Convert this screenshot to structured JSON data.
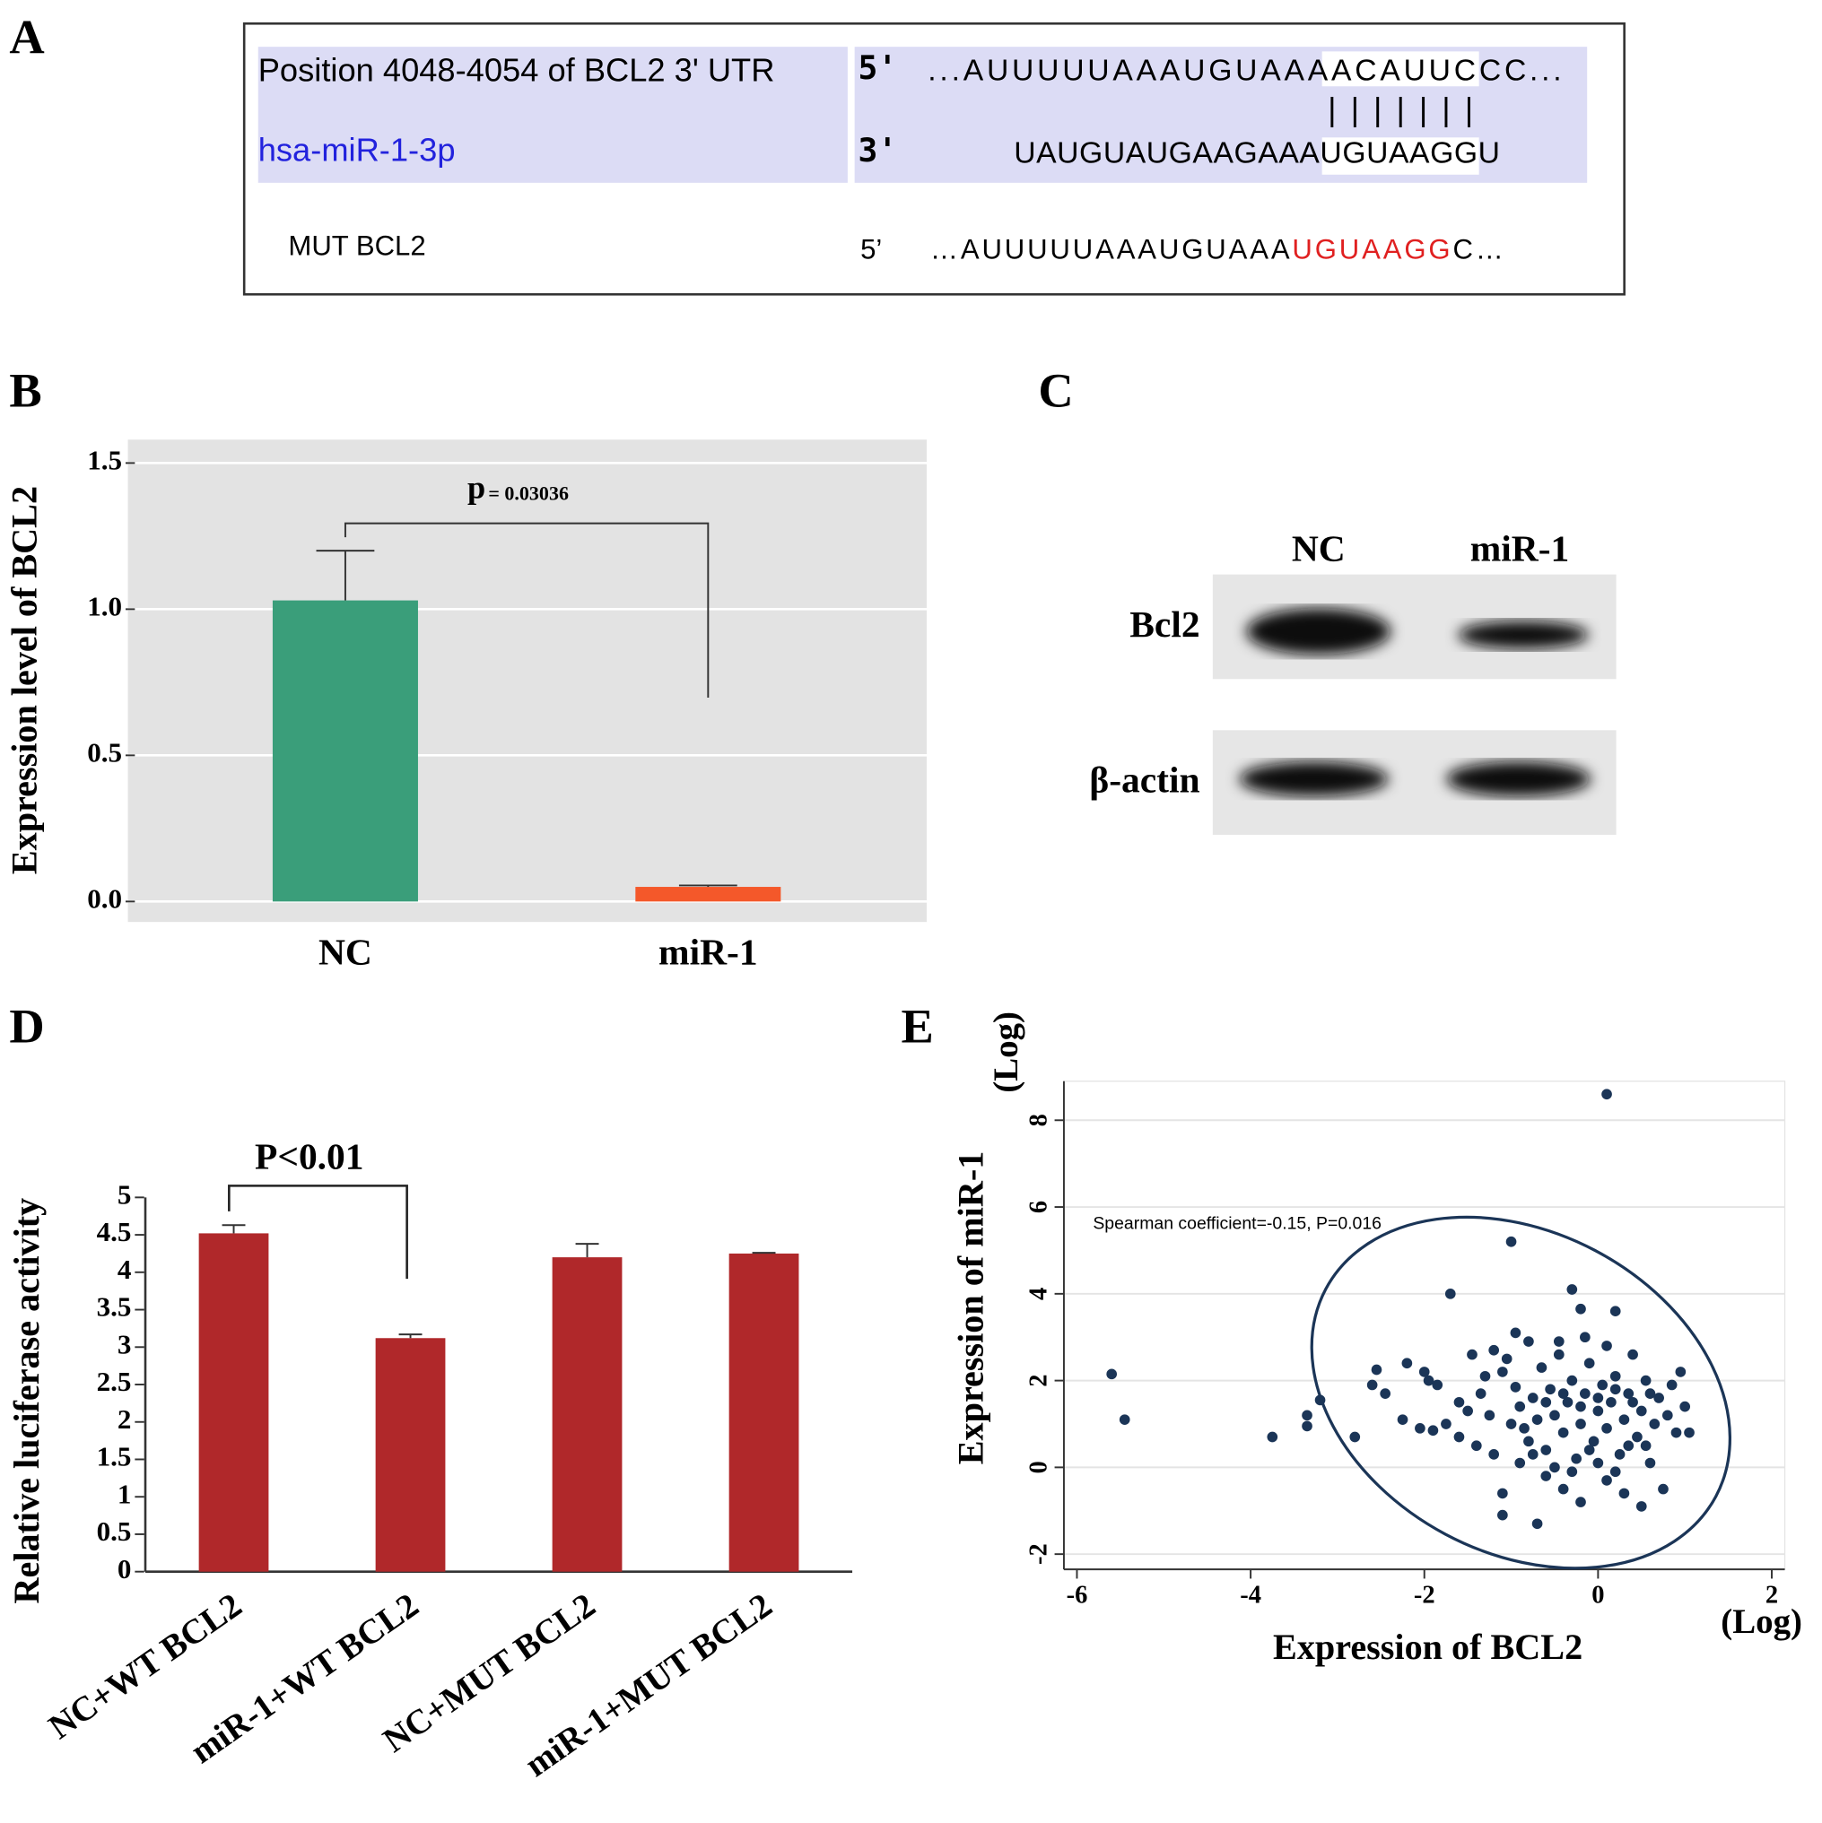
{
  "panel_labels": [
    "A",
    "B",
    "C",
    "D",
    "E"
  ],
  "sequence": {
    "target": {
      "name": "Position 4048-4054 of BCL2 3' UTR",
      "end": "5'",
      "flank": "...AUUUUUAAAUGUAAA",
      "site": "ACAUUCC",
      "tail": "C..."
    },
    "pairing": "|||||||",
    "mirna": {
      "name": "hsa-miR-1-3p",
      "end": "3'",
      "flank": "UAUGUAUGAAGAAA",
      "site": "UGUAAGG",
      "tail": "U"
    },
    "mutant": {
      "name": "MUT BCL2",
      "end": "5’",
      "flank": "…AUUUUUAAAUGUAAA",
      "site": "UGUAAGG",
      "tail": "C…"
    }
  },
  "blot": {
    "columns": [
      "NC",
      "miR-1"
    ],
    "rows": [
      "Bcl2",
      "β-actin"
    ]
  },
  "chart_data": [
    {
      "type": "bar",
      "ylabel": "Expression level of BCL2",
      "categories": [
        "NC",
        "miR-1"
      ],
      "values": [
        1.03,
        0.05
      ],
      "errors": [
        0.17,
        0.005
      ],
      "colors": [
        "#3a9e7a",
        "#f4582a"
      ],
      "ylim": [
        -0.07,
        1.58
      ],
      "yticks": [
        {
          "value": 0,
          "label": "0.0"
        },
        {
          "value": 0.5,
          "label": "0.5"
        },
        {
          "value": 1,
          "label": "1.0"
        },
        {
          "value": 1.5,
          "label": "1.5"
        }
      ],
      "grid": true,
      "background": "#e3e3e3",
      "annotation": {
        "text": "p",
        "small": "= 0.03036"
      }
    },
    {
      "type": "bar",
      "ylabel": "Relative luciferase activity",
      "categories": [
        "NC+WT BCL2",
        "miR-1+WT BCL2",
        "NC+MUT BCL2",
        "miR-1+MUT BCL2"
      ],
      "values": [
        4.52,
        3.12,
        4.2,
        4.25
      ],
      "errors": [
        0.11,
        0.05,
        0.18,
        0.01
      ],
      "color": "#b0282a",
      "ylim": [
        0,
        5
      ],
      "yticks": [
        0,
        0.5,
        1,
        1.5,
        2,
        2.5,
        3,
        3.5,
        4,
        4.5,
        5
      ],
      "grid": false,
      "annotation": {
        "text": "P<0.01"
      }
    },
    {
      "type": "scatter",
      "xlabel": "Expression of BCL2",
      "xunit": "(Log)",
      "ylabel": "Expression of miR-1",
      "yunit": "(Log)",
      "annotation": "Spearman coefficient=-0.15, P=0.016",
      "color": "#1b3557",
      "xlim": [
        -6.15,
        2.15
      ],
      "ylim": [
        -2.35,
        8.9
      ],
      "xticks": [
        -6,
        -4,
        -2,
        0,
        2
      ],
      "yticks": [
        -2,
        0,
        2,
        4,
        6,
        8
      ],
      "grid": true,
      "x": [
        0.1,
        -1.0,
        -5.6,
        -5.45,
        -3.75,
        -2.8,
        -3.2,
        -3.35,
        -3.35,
        -1.7,
        -0.3,
        -0.2,
        0.2,
        -2.55,
        -2.6,
        -2.45,
        -2.2,
        -2.0,
        -1.95,
        -1.85,
        -2.25,
        -2.05,
        -1.9,
        -1.75,
        -1.6,
        -1.5,
        -1.35,
        -1.45,
        -1.25,
        -1.1,
        -1.2,
        -1.05,
        -0.95,
        -0.9,
        -0.85,
        -0.8,
        -0.75,
        -0.7,
        -0.65,
        -0.6,
        -0.55,
        -0.5,
        -0.45,
        -0.4,
        -0.35,
        -0.3,
        -0.25,
        -0.2,
        -0.15,
        -0.1,
        -0.05,
        0.0,
        0.05,
        0.1,
        0.15,
        0.2,
        0.25,
        0.3,
        0.35,
        0.4,
        0.45,
        0.5,
        0.55,
        0.6,
        0.65,
        0.7,
        0.75,
        0.8,
        0.85,
        0.9,
        1.0,
        1.05,
        0.95,
        -0.6,
        -0.4,
        -0.2,
        0.1,
        0.3,
        0.5,
        -1.1,
        -1.1,
        -0.7,
        -0.5,
        -0.3,
        0.0,
        0.2,
        -0.9,
        -1.2,
        -1.4,
        -0.8,
        -0.6,
        -0.4,
        -0.2,
        0.0,
        0.2,
        0.4,
        0.6,
        -1.0,
        -1.3,
        -1.6,
        -0.1,
        0.35,
        0.55,
        -0.75,
        -0.45,
        0.1,
        -0.15,
        -0.95
      ],
      "y": [
        8.6,
        5.2,
        2.15,
        1.1,
        0.7,
        0.7,
        1.55,
        1.2,
        0.95,
        4.0,
        4.1,
        3.65,
        3.6,
        2.25,
        1.9,
        1.7,
        2.4,
        2.2,
        2.0,
        1.9,
        1.1,
        0.9,
        0.85,
        1.0,
        0.7,
        1.3,
        1.7,
        2.6,
        1.2,
        2.2,
        2.7,
        2.5,
        1.85,
        1.4,
        0.9,
        2.9,
        1.6,
        1.1,
        2.3,
        0.4,
        1.8,
        1.2,
        2.6,
        0.8,
        1.5,
        2.0,
        0.2,
        1.0,
        1.7,
        2.4,
        0.6,
        1.3,
        1.9,
        0.9,
        1.5,
        2.1,
        0.3,
        1.1,
        1.7,
        2.6,
        0.7,
        1.3,
        2.0,
        0.1,
        1.0,
        1.6,
        -0.5,
        1.2,
        1.9,
        0.8,
        1.4,
        0.8,
        2.2,
        -0.2,
        -0.5,
        -0.8,
        -0.3,
        -0.6,
        -0.9,
        -1.1,
        -0.6,
        -1.3,
        0.0,
        -0.1,
        0.1,
        -0.1,
        0.1,
        0.3,
        0.5,
        0.6,
        1.5,
        1.7,
        1.4,
        1.6,
        1.8,
        1.5,
        1.7,
        1.0,
        2.1,
        1.5,
        0.4,
        0.5,
        0.5,
        0.3,
        2.9,
        2.8,
        3.0,
        3.1
      ]
    }
  ]
}
